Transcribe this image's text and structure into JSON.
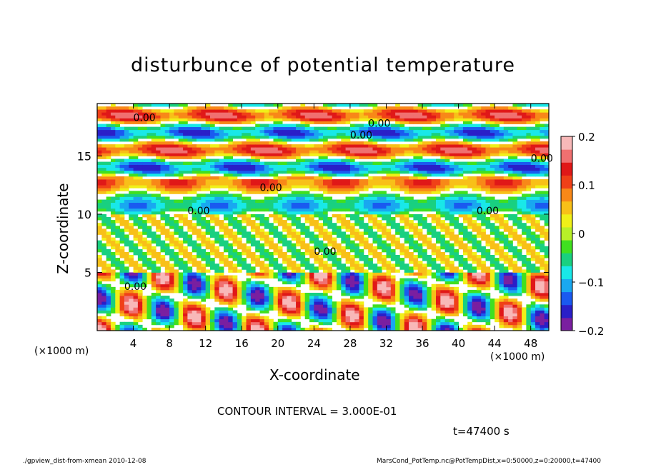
{
  "chart_data": {
    "type": "heatmap",
    "title": "disturbunce of potential temperature",
    "xlabel": "X-coordinate",
    "ylabel": "Z-coordinate",
    "x_unit_left": "(×1000 m)",
    "x_unit_right": "(×1000 m)",
    "xlim": [
      0,
      50
    ],
    "ylim": [
      0,
      19.5
    ],
    "x_ticks": [
      "4",
      "8",
      "12",
      "16",
      "20",
      "24",
      "28",
      "32",
      "36",
      "40",
      "44",
      "48"
    ],
    "y_ticks": [
      "5",
      "10",
      "15"
    ],
    "colorbar": {
      "range": [
        -0.2,
        0.2
      ],
      "tick_labels": [
        "0.2",
        "0.1",
        "0",
        "−0.1",
        "−0.2"
      ],
      "colors": [
        "#7a1fa0",
        "#2a1fc8",
        "#1a5af0",
        "#19a8f0",
        "#19e8e8",
        "#19d080",
        "#40e020",
        "#b8f028",
        "#f0f018",
        "#f8c018",
        "#f88818",
        "#f04018",
        "#e01818",
        "#f07070",
        "#f8b8b8"
      ]
    },
    "contour_label": "0.00",
    "contour_interval": "CONTOUR INTERVAL = 3.000E-01",
    "time_label": "t=47400 s"
  },
  "footer": {
    "left": "./gpview_dist-from-xmean   2010-12-08",
    "right": "MarsCond_PotTemp.nc@PotTempDist,x=0:50000,z=0:20000,t=47400"
  }
}
